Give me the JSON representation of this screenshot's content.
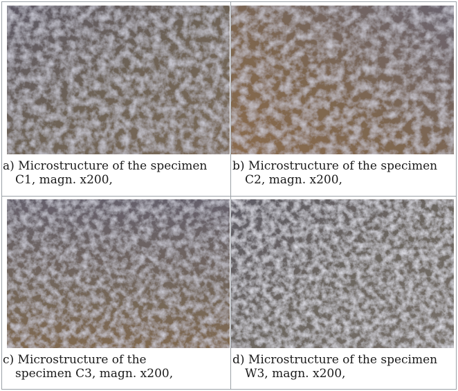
{
  "panels": [
    {
      "id": "a",
      "caption_line1": "a)  Microstructure of the specimen",
      "caption_line2": "C1, magn. x200,",
      "tint": "#7b6a58"
    },
    {
      "id": "b",
      "caption_line1": "b)  Microstructure of the specimen",
      "caption_line2": "C2, magn. x200,",
      "tint": "#8a6b4c"
    },
    {
      "id": "c",
      "caption_line1": "c) Microstructure of the",
      "caption_line2": "specimen C3, magn. x200,",
      "tint": "#80694f"
    },
    {
      "id": "d",
      "caption_line1": "d) Microstructure of the specimen",
      "caption_line2": "W3, magn. x200,",
      "tint": "#777069"
    }
  ]
}
